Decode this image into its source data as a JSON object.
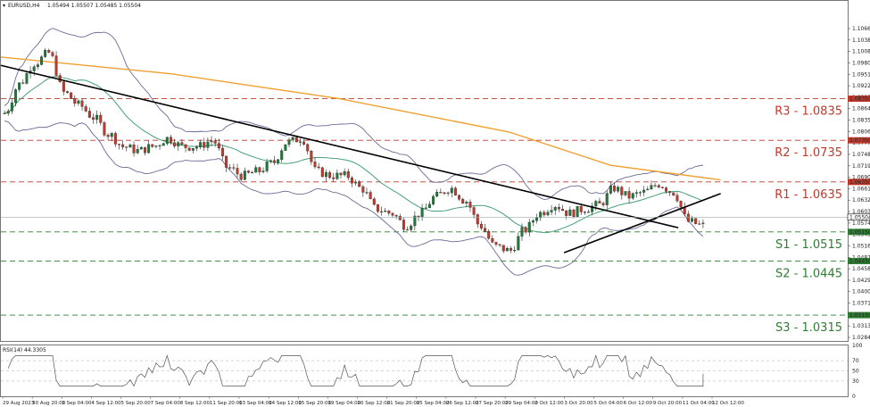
{
  "header": {
    "symbol": "EURUSD,H4",
    "ohlc": "1.05494 1.05507 1.05485 1.05504"
  },
  "rsi_header": "RSI(14) 44.3305",
  "colors": {
    "resistance": "#c0392b",
    "support": "#2e7d32",
    "ma200": "#f0a030",
    "bollinger": "#6a6a9a",
    "ma_mid": "#45a07a",
    "trend": "#000000",
    "bull": "#1f7a3a",
    "bear": "#c0392b",
    "current": "#000000"
  },
  "chart_data": {
    "type": "candlestick",
    "title": "EURUSD,H4",
    "ylim": [
      1.0253,
      1.107
    ],
    "y_ticks": [
      "1.10660",
      "1.10380",
      "1.10080",
      "1.09800",
      "1.09510",
      "1.09220",
      "1.08930",
      "1.08640",
      "1.08350",
      "1.08060",
      "1.07770",
      "1.07480",
      "1.07190",
      "1.06900",
      "1.06610",
      "1.06320",
      "1.06030",
      "1.05740",
      "1.05450",
      "1.05160",
      "1.04870",
      "1.04580",
      "1.04290",
      "1.04000",
      "1.03710",
      "1.03420",
      "1.03130",
      "1.02840"
    ],
    "x_labels": [
      "29 Aug 2023",
      "30 Aug 20:00",
      "1 Sep 04:00",
      "4 Sep 12:00",
      "5 Sep 20:00",
      "7 Sep 04:00",
      "8 Sep 12:00",
      "11 Sep 20:00",
      "13 Sep 04:00",
      "14 Sep 12:00",
      "15 Sep 20:00",
      "19 Sep 04:00",
      "20 Sep 12:00",
      "21 Sep 20:00",
      "25 Sep 04:00",
      "26 Sep 12:00",
      "27 Sep 20:00",
      "29 Sep 04:00",
      "2 Oct 12:00",
      "3 Oct 20:00",
      "5 Oct 04:00",
      "6 Oct 12:00",
      "9 Oct 20:00",
      "11 Oct 04:00",
      "12 Oct 12:00"
    ],
    "close_anchors": [
      1.08,
      1.087,
      1.092,
      1.0945,
      1.085,
      1.082,
      1.079,
      1.075,
      1.072,
      1.071,
      1.072,
      1.074,
      1.072,
      1.072,
      1.0735,
      1.067,
      1.065,
      1.066,
      1.068,
      1.073,
      1.074,
      1.066,
      1.065,
      1.065,
      1.062,
      1.057,
      1.056,
      1.053,
      1.056,
      1.06,
      1.062,
      1.059,
      1.053,
      1.048,
      1.047,
      1.052,
      1.056,
      1.058,
      1.056,
      1.057,
      1.058,
      1.062,
      1.06,
      1.061,
      1.063,
      1.061,
      1.054,
      1.053
    ],
    "current_price": "1.05504",
    "levels": [
      {
        "name": "R3",
        "value": 1.0835,
        "label": "R3 - 1.0835",
        "tag": "1.08350",
        "kind": "resistance"
      },
      {
        "name": "R2",
        "value": 1.0735,
        "label": "R2 - 1.0735",
        "tag": "1.07350",
        "kind": "resistance"
      },
      {
        "name": "R1",
        "value": 1.0635,
        "label": "R1 - 1.0635",
        "tag": "1.06350",
        "kind": "resistance"
      },
      {
        "name": "S1",
        "value": 1.0515,
        "label": "S1 - 1.0515",
        "tag": "1.05150",
        "kind": "support"
      },
      {
        "name": "S2",
        "value": 1.0445,
        "label": "S2 - 1.0445",
        "tag": "1.04450",
        "kind": "support"
      },
      {
        "name": "S3",
        "value": 1.0315,
        "label": "S3 - 1.0315",
        "tag": "1.03150",
        "kind": "support"
      }
    ],
    "trendlines": [
      {
        "from": [
          0.0,
          1.0915
        ],
        "to": [
          0.8,
          1.0525
        ]
      },
      {
        "from": [
          0.665,
          1.0465
        ],
        "to": [
          0.85,
          1.0607
        ]
      }
    ],
    "ma200": [
      [
        0.0,
        1.0935
      ],
      [
        0.2,
        1.0895
      ],
      [
        0.4,
        1.0835
      ],
      [
        0.6,
        1.0755
      ],
      [
        0.72,
        1.0675
      ],
      [
        0.85,
        1.064
      ]
    ],
    "rsi": {
      "ylim": [
        0,
        100
      ],
      "y_ticks": [
        "100",
        "70",
        "50",
        "30",
        "0"
      ],
      "guide_levels": [
        70,
        50,
        30
      ],
      "last_value": 44.3305
    }
  }
}
